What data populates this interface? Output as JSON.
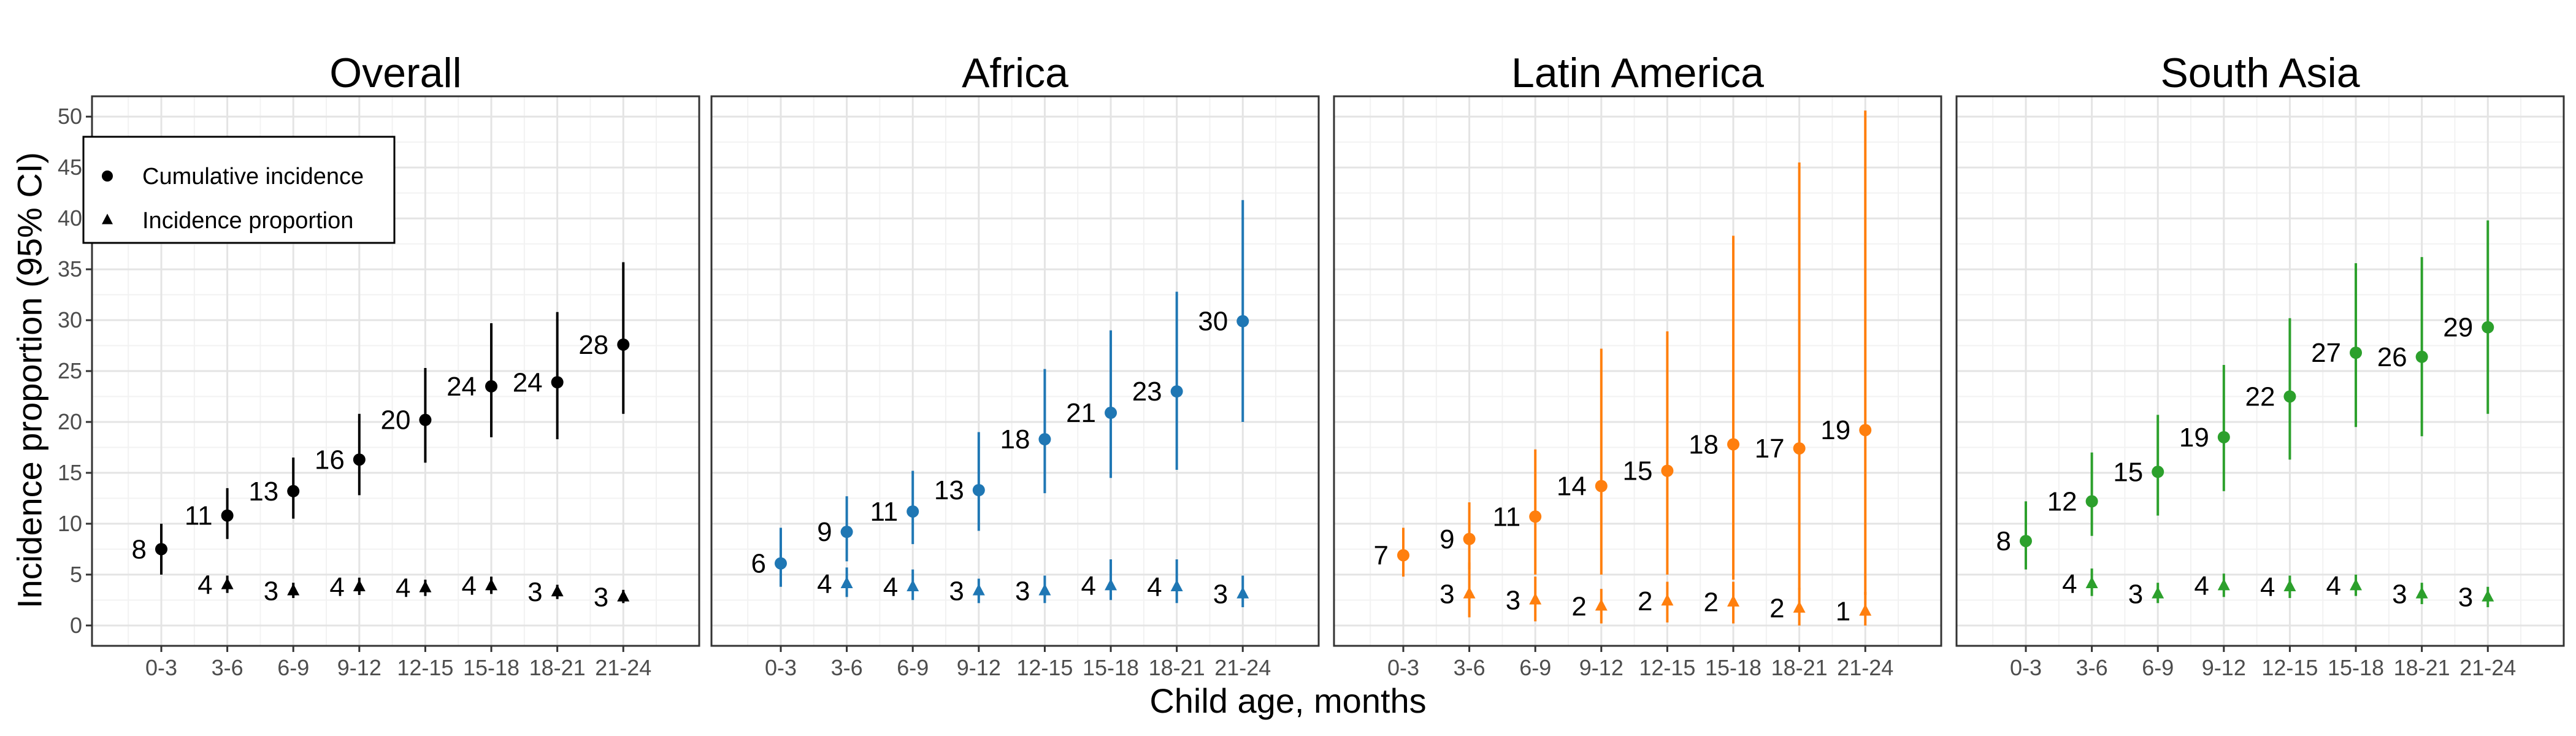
{
  "figure": {
    "xlabel": "Child age, months",
    "ylabel": "Incidence proportion (95% CI)"
  },
  "legend": {
    "placement": "top-left, inside first panel",
    "entries": [
      {
        "label": "Cumulative incidence",
        "shape": "circle"
      },
      {
        "label": "Incidence proportion",
        "shape": "triangle"
      }
    ]
  },
  "chart_data": [
    {
      "type": "scatter",
      "title": "Overall",
      "color": "#000000",
      "categories": [
        "0-3",
        "3-6",
        "6-9",
        "9-12",
        "12-15",
        "15-18",
        "18-21",
        "21-24"
      ],
      "ylim": [
        -2,
        52
      ],
      "yticks": [
        0,
        5,
        10,
        15,
        20,
        25,
        30,
        35,
        40,
        45,
        50
      ],
      "grid": true,
      "series": [
        {
          "name": "Cumulative incidence",
          "marker": "circle",
          "values": [
            7.5,
            10.8,
            13.2,
            16.3,
            20.2,
            23.5,
            23.9,
            27.6
          ],
          "ci_low": [
            5.0,
            8.5,
            10.5,
            12.8,
            16.0,
            18.5,
            18.3,
            20.8
          ],
          "ci_high": [
            10.0,
            13.5,
            16.5,
            20.8,
            25.3,
            29.7,
            30.8,
            35.7
          ],
          "labels": [
            "8",
            "11",
            "13",
            "16",
            "20",
            "24",
            "24",
            "28"
          ]
        },
        {
          "name": "Incidence proportion",
          "marker": "triangle",
          "values": [
            null,
            4.0,
            3.4,
            3.8,
            3.7,
            3.9,
            3.3,
            2.8
          ],
          "ci_low": [
            null,
            3.2,
            2.7,
            3.0,
            2.9,
            3.1,
            2.6,
            2.2
          ],
          "ci_high": [
            null,
            4.9,
            4.2,
            4.7,
            4.5,
            4.8,
            4.0,
            3.5
          ],
          "labels": [
            "",
            "4",
            "3",
            "4",
            "4",
            "4",
            "3",
            "3"
          ]
        }
      ]
    },
    {
      "type": "scatter",
      "title": "Africa",
      "color": "#1F77B4",
      "categories": [
        "0-3",
        "3-6",
        "6-9",
        "9-12",
        "12-15",
        "15-18",
        "18-21",
        "21-24"
      ],
      "ylim": [
        -2,
        52
      ],
      "grid": true,
      "series": [
        {
          "name": "Cumulative incidence",
          "marker": "circle",
          "values": [
            6.1,
            9.2,
            11.2,
            13.3,
            18.3,
            20.9,
            23.0,
            29.9
          ],
          "ci_low": [
            3.8,
            6.3,
            8.0,
            9.3,
            13.0,
            14.5,
            15.3,
            20.0
          ],
          "ci_high": [
            9.6,
            12.7,
            15.2,
            19.0,
            25.2,
            29.0,
            32.8,
            41.8
          ],
          "labels": [
            "6",
            "9",
            "11",
            "13",
            "18",
            "21",
            "23",
            "30"
          ]
        },
        {
          "name": "Incidence proportion",
          "marker": "triangle",
          "values": [
            null,
            4.1,
            3.8,
            3.4,
            3.4,
            3.9,
            3.8,
            3.1
          ],
          "ci_low": [
            null,
            2.8,
            2.5,
            2.2,
            2.2,
            2.5,
            2.2,
            1.8
          ],
          "ci_high": [
            null,
            5.7,
            5.5,
            4.6,
            4.9,
            6.5,
            6.5,
            4.9
          ],
          "labels": [
            "",
            "4",
            "4",
            "3",
            "3",
            "4",
            "4",
            "3"
          ]
        }
      ]
    },
    {
      "type": "scatter",
      "title": "Latin America",
      "color": "#FF7F0E",
      "categories": [
        "0-3",
        "3-6",
        "6-9",
        "9-12",
        "12-15",
        "15-18",
        "18-21",
        "21-24"
      ],
      "ylim": [
        -2,
        52
      ],
      "grid": true,
      "series": [
        {
          "name": "Cumulative incidence",
          "marker": "circle",
          "values": [
            6.9,
            8.5,
            10.7,
            13.7,
            15.2,
            17.8,
            17.4,
            19.2
          ],
          "ci_low": [
            4.8,
            5.5,
            5.0,
            5.0,
            5.0,
            4.5,
            3.5,
            3.0
          ],
          "ci_high": [
            9.6,
            12.1,
            17.3,
            27.2,
            28.9,
            38.3,
            45.5,
            50.6
          ],
          "labels": [
            "7",
            "9",
            "11",
            "14",
            "15",
            "18",
            "17",
            "19"
          ]
        },
        {
          "name": "Incidence proportion",
          "marker": "triangle",
          "values": [
            null,
            3.1,
            2.5,
            1.9,
            2.4,
            2.3,
            1.7,
            1.4
          ],
          "ci_low": [
            null,
            0.8,
            0.4,
            0.2,
            0.3,
            0.2,
            0.0,
            0.0
          ],
          "ci_high": [
            null,
            6.2,
            4.8,
            3.6,
            4.3,
            4.3,
            3.7,
            3.3
          ],
          "labels": [
            "",
            "3",
            "3",
            "2",
            "2",
            "2",
            "2",
            "1"
          ]
        }
      ]
    },
    {
      "type": "scatter",
      "title": "South Asia",
      "color": "#2CA02C",
      "categories": [
        "0-3",
        "3-6",
        "6-9",
        "9-12",
        "12-15",
        "15-18",
        "18-21",
        "21-24"
      ],
      "ylim": [
        -2,
        52
      ],
      "grid": true,
      "series": [
        {
          "name": "Cumulative incidence",
          "marker": "circle",
          "values": [
            8.3,
            12.2,
            15.1,
            18.5,
            22.5,
            26.8,
            26.4,
            29.3
          ],
          "ci_low": [
            5.5,
            8.8,
            10.8,
            13.2,
            16.3,
            19.5,
            18.6,
            20.8
          ],
          "ci_high": [
            12.2,
            17.0,
            20.7,
            25.6,
            30.2,
            35.6,
            36.2,
            39.8
          ],
          "labels": [
            "8",
            "12",
            "15",
            "19",
            "22",
            "27",
            "26",
            "29"
          ]
        },
        {
          "name": "Incidence proportion",
          "marker": "triangle",
          "values": [
            null,
            4.1,
            3.1,
            3.9,
            3.8,
            3.9,
            3.1,
            2.8
          ],
          "ci_low": [
            null,
            2.9,
            2.2,
            2.8,
            2.7,
            2.9,
            2.1,
            1.8
          ],
          "ci_high": [
            null,
            5.6,
            4.2,
            5.1,
            4.9,
            5.0,
            4.2,
            3.8
          ],
          "labels": [
            "",
            "4",
            "3",
            "4",
            "4",
            "4",
            "3",
            "3"
          ]
        }
      ]
    }
  ]
}
